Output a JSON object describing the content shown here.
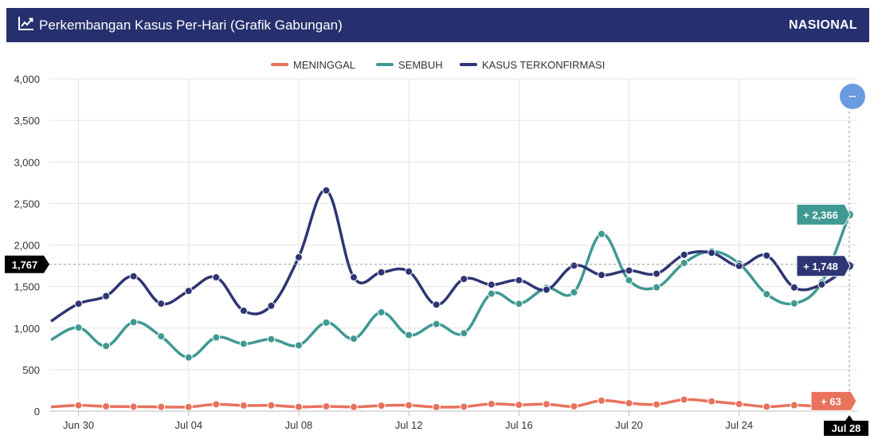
{
  "header": {
    "title": "Perkembangan Kasus Per-Hari (Grafik Gabungan)",
    "region": "NASIONAL",
    "icon": "line-chart-icon"
  },
  "colors": {
    "header_bg": "#27306e",
    "meninggal": "#e8725c",
    "sembuh": "#3f9992",
    "kasus": "#2e3574",
    "zoom_button": "#6a9be0"
  },
  "legend": [
    {
      "key": "meninggal",
      "label": "MENINGGAL"
    },
    {
      "key": "sembuh",
      "label": "SEMBUH"
    },
    {
      "key": "kasus",
      "label": "KASUS TERKONFIRMASI"
    }
  ],
  "crosshair": {
    "y_label": "1,767",
    "x_label": "Jul 28"
  },
  "tooltips": {
    "sembuh": "+ 2,366",
    "kasus": "+ 1,748",
    "meninggal": "+ 63"
  },
  "zoom_button_symbol": "−",
  "chart_data": {
    "type": "line",
    "x_start": "Jun 29",
    "x_end": "Jul 28",
    "x_ticks": [
      "Jun 30",
      "Jul 04",
      "Jul 08",
      "Jul 12",
      "Jul 16",
      "Jul 20",
      "Jul 24"
    ],
    "y_ticks": [
      "0",
      "500",
      "1,000",
      "1,500",
      "2,000",
      "2,500",
      "3,000",
      "3,500",
      "4,000"
    ],
    "ylim": [
      0,
      4000
    ],
    "grid": true,
    "legend_position": "top-center",
    "series": [
      {
        "name": "KASUS TERKONFIRMASI",
        "key": "kasus",
        "values": [
          1082,
          1293,
          1385,
          1624,
          1294,
          1447,
          1611,
          1209,
          1268,
          1853,
          2657,
          1611,
          1671,
          1681,
          1282,
          1591,
          1522,
          1576,
          1462,
          1752,
          1639,
          1693,
          1655,
          1882,
          1906,
          1748,
          1873,
          1489,
          1525,
          1748
        ]
      },
      {
        "name": "SEMBUH",
        "key": "sembuh",
        "values": [
          858,
          1006,
          784,
          1072,
          901,
          646,
          887,
          810,
          867,
          792,
          1066,
          872,
          1190,
          916,
          1049,
          938,
          1414,
          1293,
          1482,
          1430,
          2133,
          1576,
          1490,
          1784,
          1924,
          1777,
          1409,
          1297,
          1550,
          2366
        ]
      },
      {
        "name": "MENINGGAL",
        "key": "meninggal",
        "values": [
          51,
          70,
          58,
          54,
          51,
          50,
          82,
          68,
          69,
          51,
          58,
          50,
          66,
          71,
          49,
          54,
          87,
          76,
          84,
          58,
          127,
          96,
          81,
          139,
          117,
          86,
          54,
          72,
          57,
          63
        ]
      }
    ]
  }
}
